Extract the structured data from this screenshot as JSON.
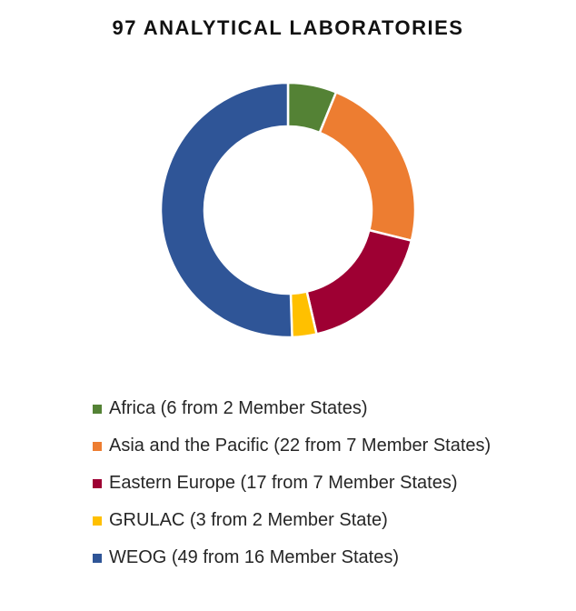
{
  "chart_data": {
    "type": "pie",
    "donut": true,
    "title": "97 ANALYTICAL LABORATORIES",
    "categories": [
      "Africa (6 from 2 Member States)",
      "Asia and the Pacific (22 from 7 Member States)",
      "Eastern Europe (17 from 7 Member States)",
      "GRULAC (3 from 2 Member State)",
      "WEOG (49 from 16 Member States)"
    ],
    "values": [
      6,
      22,
      17,
      3,
      49
    ],
    "colors": [
      "#548235",
      "#ED7D31",
      "#9E0033",
      "#FFC000",
      "#2F5597"
    ],
    "legend_position": "bottom"
  }
}
